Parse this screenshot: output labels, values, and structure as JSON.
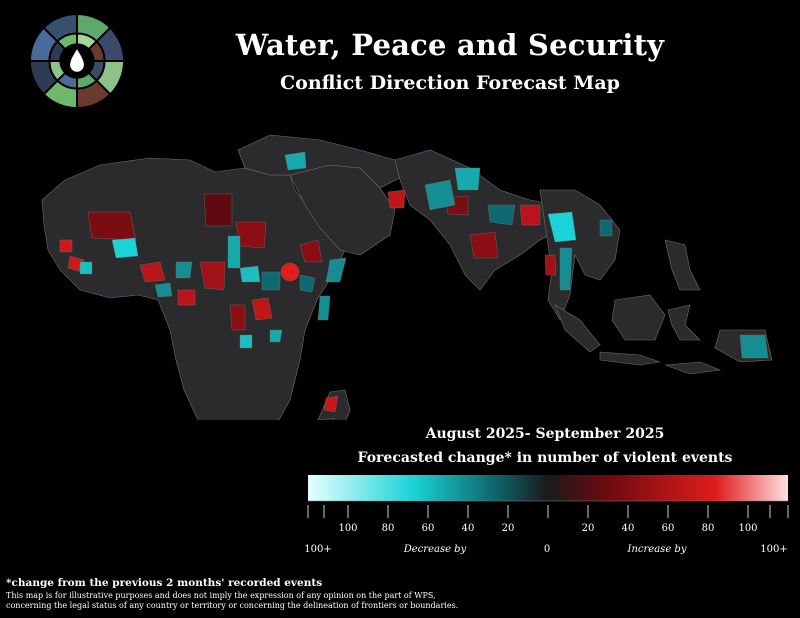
{
  "header": {
    "title": "Water, Peace and Security",
    "subtitle": "Conflict Direction Forecast Map"
  },
  "legend": {
    "period": "August 2025- September 2025",
    "title": "Forecasted change* in number of violent events",
    "left_ticks": [
      "100",
      "80",
      "60",
      "40",
      "20"
    ],
    "right_ticks": [
      "20",
      "40",
      "60",
      "80",
      "100"
    ],
    "left_end": "100+",
    "decrease_label": "Decrease by",
    "zero_label": "0",
    "increase_label": "Increase by",
    "right_end": "100+",
    "colors": {
      "decrease_max": "#e6ffff",
      "decrease_mid": "#19d3d6",
      "decrease_low": "#0e5e64",
      "zero": "#1a1a1a",
      "increase_low": "#6b0a0f",
      "increase_mid": "#e01c1c",
      "increase_max": "#ffe0e0"
    }
  },
  "footer": {
    "note": "*change from the previous 2 months' recorded events",
    "disclaimer_line1": "This map is for illustrative purposes and does not imply the expression of any opinion on the part of WPS,",
    "disclaimer_line2": "concerning the legal status of any country or territory or concerning the delineation of frontiers or boundaries."
  }
}
